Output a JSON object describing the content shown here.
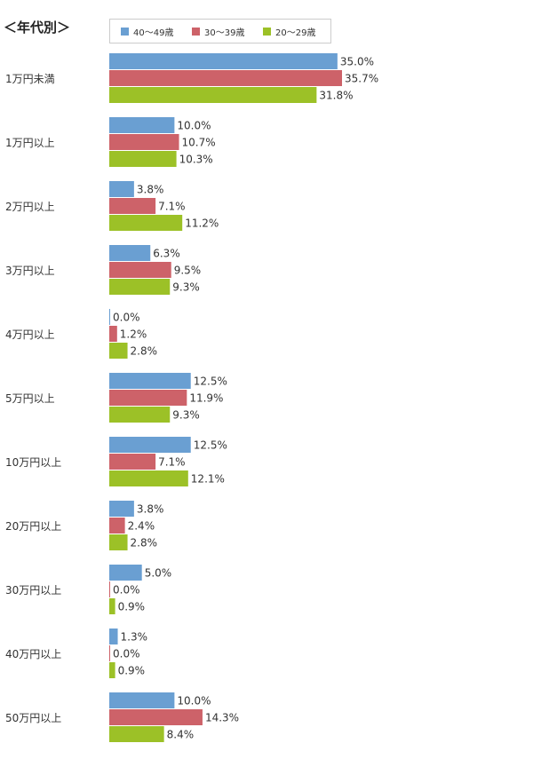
{
  "chart_data": {
    "type": "bar",
    "orientation": "horizontal",
    "title": "＜年代別＞",
    "categories": [
      "1万円未満",
      "1万円以上",
      "2万円以上",
      "3万円以上",
      "4万円以上",
      "5万円以上",
      "10万円以上",
      "20万円以上",
      "30万円以上",
      "40万円以上",
      "50万円以上"
    ],
    "series": [
      {
        "name": "40～49歳",
        "color": "#6a9fd2",
        "values": [
          35.0,
          10.0,
          3.8,
          6.3,
          0.0,
          12.5,
          12.5,
          3.8,
          5.0,
          1.3,
          10.0
        ],
        "labels": [
          "35.0%",
          "10.0%",
          "3.8%",
          "6.3%",
          "0.0%",
          "12.5%",
          "12.5%",
          "3.8%",
          "5.0%",
          "1.3%",
          "10.0%"
        ]
      },
      {
        "name": "30～39歳",
        "color": "#cd6269",
        "values": [
          35.7,
          10.7,
          7.1,
          9.5,
          1.2,
          11.9,
          7.1,
          2.4,
          0.0,
          0.0,
          14.3
        ],
        "labels": [
          "35.7%",
          "10.7%",
          "7.1%",
          "9.5%",
          "1.2%",
          "11.9%",
          "7.1%",
          "2.4%",
          "0.0%",
          "0.0%",
          "14.3%"
        ]
      },
      {
        "name": "20～29歳",
        "color": "#9cc127",
        "values": [
          31.8,
          10.3,
          11.2,
          9.3,
          2.8,
          9.3,
          12.1,
          2.8,
          0.9,
          0.9,
          8.4
        ],
        "labels": [
          "31.8%",
          "10.3%",
          "11.2%",
          "9.3%",
          "2.8%",
          "9.3%",
          "12.1%",
          "2.8%",
          "0.9%",
          "0.9%",
          "8.4%"
        ]
      }
    ],
    "xlim": [
      0,
      35.7
    ],
    "grid": false,
    "legend_position": "top"
  }
}
